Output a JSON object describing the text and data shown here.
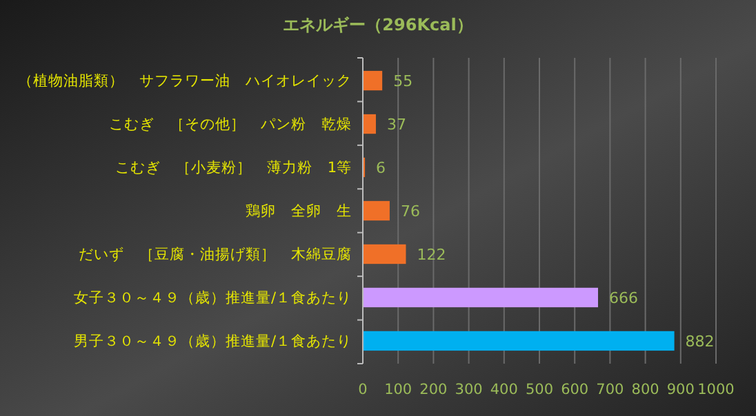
{
  "chart_data": {
    "type": "bar",
    "orientation": "horizontal",
    "title": "エネルギー（296Kcal）",
    "categories": [
      "（植物油脂類）　サフラワー油　ハイオレイック",
      "こむぎ　［その他］　パン粉　乾燥",
      "こむぎ　［小麦粉］　薄力粉　1等",
      "鶏卵　全卵　生",
      "だいず　［豆腐・油揚げ類］　木綿豆腐",
      "女子３０～４９（歳）推進量/１食あたり",
      "男子３０～４９（歳）推進量/１食あたり"
    ],
    "values": [
      55,
      37,
      6,
      76,
      122,
      666,
      882
    ],
    "colors": [
      "#f07028",
      "#f07028",
      "#f07028",
      "#f07028",
      "#f07028",
      "#cc99ff",
      "#00b0f0"
    ],
    "xlim": [
      0,
      1000
    ],
    "xticks": [
      0,
      100,
      200,
      300,
      400,
      500,
      600,
      700,
      800,
      900,
      1000
    ],
    "grid": "x",
    "data_labels": true
  }
}
